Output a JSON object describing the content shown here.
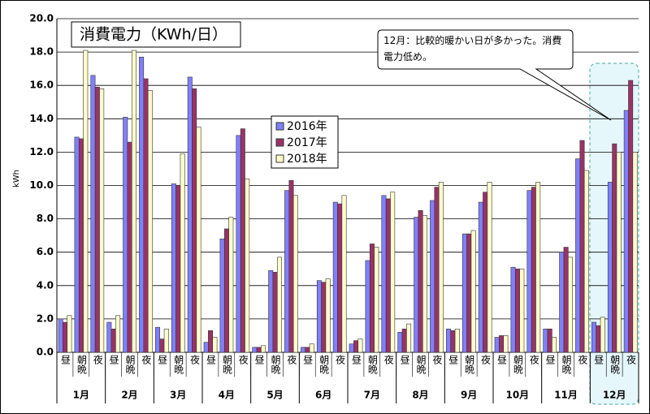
{
  "chart_data": {
    "type": "bar",
    "title": "消費電力（KWh/日）",
    "ylabel": "kWh",
    "annotation": "12月：比較的暖かい日が多かった。消費電力低め。",
    "groups": [
      "1月",
      "2月",
      "3月",
      "4月",
      "5月",
      "6月",
      "7月",
      "8月",
      "9月",
      "10月",
      "11月",
      "12月"
    ],
    "categories": [
      "昼",
      "朝晩",
      "夜",
      "昼",
      "朝晩",
      "夜",
      "昼",
      "朝晩",
      "夜",
      "昼",
      "朝晩",
      "夜",
      "昼",
      "朝晩",
      "夜",
      "昼",
      "朝晩",
      "夜",
      "昼",
      "朝晩",
      "夜",
      "昼",
      "朝晩",
      "夜",
      "昼",
      "朝晩",
      "夜",
      "昼",
      "朝晩",
      "夜",
      "昼",
      "朝晩",
      "夜",
      "昼",
      "朝晩",
      "夜"
    ],
    "series": [
      {
        "name": "2016年",
        "color": "#8080ff",
        "values": [
          2.0,
          12.9,
          16.6,
          1.8,
          14.1,
          17.7,
          1.5,
          10.1,
          16.5,
          0.6,
          6.8,
          13.0,
          0.3,
          4.9,
          9.7,
          0.3,
          4.3,
          9.0,
          0.5,
          5.5,
          9.4,
          1.2,
          8.1,
          9.1,
          1.4,
          7.1,
          9.0,
          0.9,
          5.1,
          9.7,
          1.4,
          6.0,
          11.6,
          1.8,
          10.2,
          14.5
        ]
      },
      {
        "name": "2017年",
        "color": "#993366",
        "values": [
          1.8,
          12.8,
          15.9,
          1.4,
          12.6,
          16.4,
          0.8,
          10.0,
          15.8,
          1.3,
          7.4,
          13.4,
          0.3,
          4.8,
          10.3,
          0.3,
          4.2,
          8.9,
          0.7,
          6.5,
          9.2,
          1.4,
          8.5,
          9.9,
          1.3,
          7.1,
          9.6,
          1.0,
          5.0,
          9.9,
          1.4,
          6.3,
          12.7,
          1.6,
          12.5,
          16.3
        ]
      },
      {
        "name": "2018年",
        "color": "#ffffcc",
        "values": [
          2.2,
          18.1,
          15.8,
          2.2,
          18.1,
          15.7,
          1.4,
          11.9,
          13.5,
          0.9,
          8.1,
          10.4,
          0.4,
          5.7,
          9.4,
          0.5,
          4.4,
          9.4,
          0.8,
          6.3,
          9.6,
          1.7,
          8.2,
          10.2,
          1.4,
          7.3,
          10.2,
          1.0,
          5.0,
          10.2,
          0.9,
          5.7,
          10.9,
          2.1,
          12.0,
          12.0
        ]
      }
    ],
    "ylim": [
      0,
      20
    ],
    "yticks": [
      {
        "value": 0,
        "label": "0.0"
      },
      {
        "value": 2,
        "label": "2.0"
      },
      {
        "value": 4,
        "label": "4.0"
      },
      {
        "value": 6,
        "label": "6.0"
      },
      {
        "value": 8,
        "label": "8.0"
      },
      {
        "value": 10,
        "label": "10.0"
      },
      {
        "value": 12,
        "label": "12.0"
      },
      {
        "value": 14,
        "label": "14.0"
      },
      {
        "value": 16,
        "label": "16.0"
      },
      {
        "value": 18,
        "label": "18.0"
      },
      {
        "value": 20,
        "label": "20.0"
      }
    ],
    "grid": true
  }
}
